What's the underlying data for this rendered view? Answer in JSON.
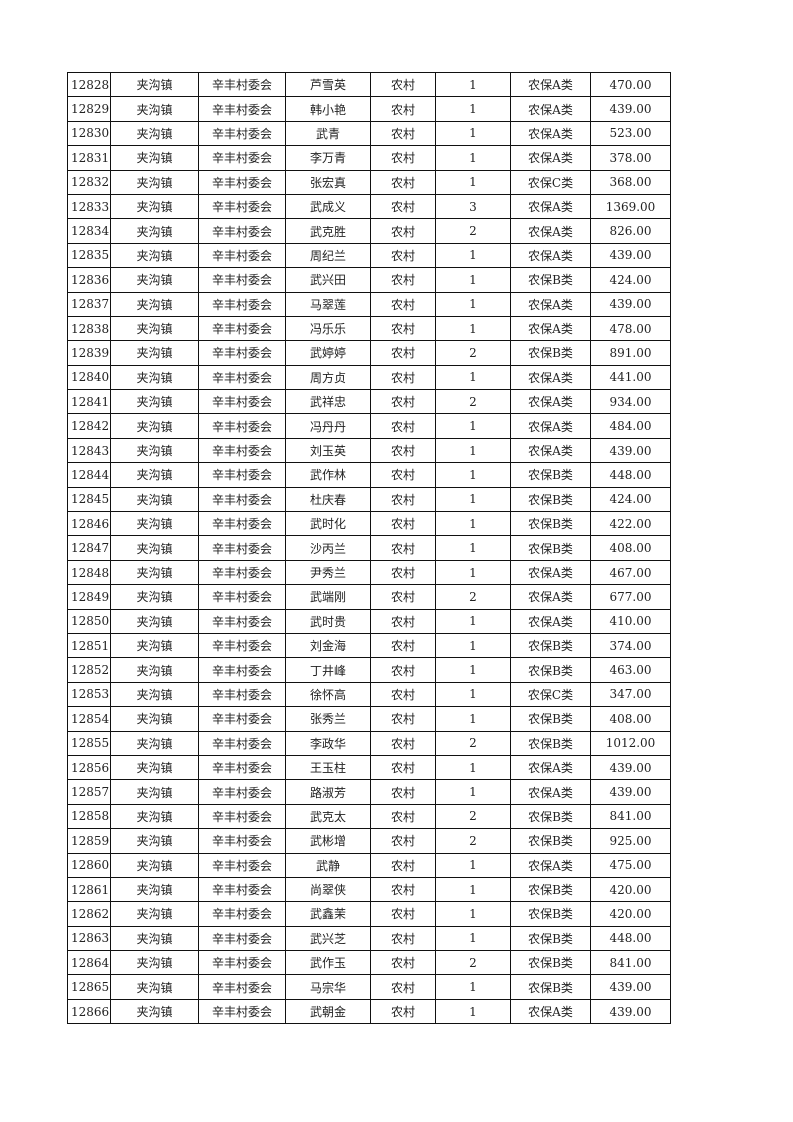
{
  "rows": [
    [
      "12828",
      "夹沟镇",
      "辛丰村委会",
      "芦雪英",
      "农村",
      "1",
      "农保A类",
      "470.00"
    ],
    [
      "12829",
      "夹沟镇",
      "辛丰村委会",
      "韩小艳",
      "农村",
      "1",
      "农保A类",
      "439.00"
    ],
    [
      "12830",
      "夹沟镇",
      "辛丰村委会",
      "武青",
      "农村",
      "1",
      "农保A类",
      "523.00"
    ],
    [
      "12831",
      "夹沟镇",
      "辛丰村委会",
      "李万青",
      "农村",
      "1",
      "农保A类",
      "378.00"
    ],
    [
      "12832",
      "夹沟镇",
      "辛丰村委会",
      "张宏真",
      "农村",
      "1",
      "农保C类",
      "368.00"
    ],
    [
      "12833",
      "夹沟镇",
      "辛丰村委会",
      "武成义",
      "农村",
      "3",
      "农保A类",
      "1369.00"
    ],
    [
      "12834",
      "夹沟镇",
      "辛丰村委会",
      "武克胜",
      "农村",
      "2",
      "农保A类",
      "826.00"
    ],
    [
      "12835",
      "夹沟镇",
      "辛丰村委会",
      "周纪兰",
      "农村",
      "1",
      "农保A类",
      "439.00"
    ],
    [
      "12836",
      "夹沟镇",
      "辛丰村委会",
      "武兴田",
      "农村",
      "1",
      "农保B类",
      "424.00"
    ],
    [
      "12837",
      "夹沟镇",
      "辛丰村委会",
      "马翠莲",
      "农村",
      "1",
      "农保A类",
      "439.00"
    ],
    [
      "12838",
      "夹沟镇",
      "辛丰村委会",
      "冯乐乐",
      "农村",
      "1",
      "农保A类",
      "478.00"
    ],
    [
      "12839",
      "夹沟镇",
      "辛丰村委会",
      "武婷婷",
      "农村",
      "2",
      "农保B类",
      "891.00"
    ],
    [
      "12840",
      "夹沟镇",
      "辛丰村委会",
      "周方贞",
      "农村",
      "1",
      "农保A类",
      "441.00"
    ],
    [
      "12841",
      "夹沟镇",
      "辛丰村委会",
      "武祥忠",
      "农村",
      "2",
      "农保A类",
      "934.00"
    ],
    [
      "12842",
      "夹沟镇",
      "辛丰村委会",
      "冯丹丹",
      "农村",
      "1",
      "农保A类",
      "484.00"
    ],
    [
      "12843",
      "夹沟镇",
      "辛丰村委会",
      "刘玉英",
      "农村",
      "1",
      "农保A类",
      "439.00"
    ],
    [
      "12844",
      "夹沟镇",
      "辛丰村委会",
      "武作林",
      "农村",
      "1",
      "农保B类",
      "448.00"
    ],
    [
      "12845",
      "夹沟镇",
      "辛丰村委会",
      "杜庆春",
      "农村",
      "1",
      "农保B类",
      "424.00"
    ],
    [
      "12846",
      "夹沟镇",
      "辛丰村委会",
      "武时化",
      "农村",
      "1",
      "农保B类",
      "422.00"
    ],
    [
      "12847",
      "夹沟镇",
      "辛丰村委会",
      "沙丙兰",
      "农村",
      "1",
      "农保B类",
      "408.00"
    ],
    [
      "12848",
      "夹沟镇",
      "辛丰村委会",
      "尹秀兰",
      "农村",
      "1",
      "农保A类",
      "467.00"
    ],
    [
      "12849",
      "夹沟镇",
      "辛丰村委会",
      "武端刚",
      "农村",
      "2",
      "农保A类",
      "677.00"
    ],
    [
      "12850",
      "夹沟镇",
      "辛丰村委会",
      "武时贵",
      "农村",
      "1",
      "农保A类",
      "410.00"
    ],
    [
      "12851",
      "夹沟镇",
      "辛丰村委会",
      "刘金海",
      "农村",
      "1",
      "农保B类",
      "374.00"
    ],
    [
      "12852",
      "夹沟镇",
      "辛丰村委会",
      "丁井峰",
      "农村",
      "1",
      "农保B类",
      "463.00"
    ],
    [
      "12853",
      "夹沟镇",
      "辛丰村委会",
      "徐怀高",
      "农村",
      "1",
      "农保C类",
      "347.00"
    ],
    [
      "12854",
      "夹沟镇",
      "辛丰村委会",
      "张秀兰",
      "农村",
      "1",
      "农保B类",
      "408.00"
    ],
    [
      "12855",
      "夹沟镇",
      "辛丰村委会",
      "李政华",
      "农村",
      "2",
      "农保B类",
      "1012.00"
    ],
    [
      "12856",
      "夹沟镇",
      "辛丰村委会",
      "王玉柱",
      "农村",
      "1",
      "农保A类",
      "439.00"
    ],
    [
      "12857",
      "夹沟镇",
      "辛丰村委会",
      "路淑芳",
      "农村",
      "1",
      "农保A类",
      "439.00"
    ],
    [
      "12858",
      "夹沟镇",
      "辛丰村委会",
      "武克太",
      "农村",
      "2",
      "农保B类",
      "841.00"
    ],
    [
      "12859",
      "夹沟镇",
      "辛丰村委会",
      "武彬增",
      "农村",
      "2",
      "农保B类",
      "925.00"
    ],
    [
      "12860",
      "夹沟镇",
      "辛丰村委会",
      "武静",
      "农村",
      "1",
      "农保A类",
      "475.00"
    ],
    [
      "12861",
      "夹沟镇",
      "辛丰村委会",
      "尚翠侠",
      "农村",
      "1",
      "农保B类",
      "420.00"
    ],
    [
      "12862",
      "夹沟镇",
      "辛丰村委会",
      "武鑫茉",
      "农村",
      "1",
      "农保B类",
      "420.00"
    ],
    [
      "12863",
      "夹沟镇",
      "辛丰村委会",
      "武兴芝",
      "农村",
      "1",
      "农保B类",
      "448.00"
    ],
    [
      "12864",
      "夹沟镇",
      "辛丰村委会",
      "武作玉",
      "农村",
      "2",
      "农保B类",
      "841.00"
    ],
    [
      "12865",
      "夹沟镇",
      "辛丰村委会",
      "马宗华",
      "农村",
      "1",
      "农保B类",
      "439.00"
    ],
    [
      "12866",
      "夹沟镇",
      "辛丰村委会",
      "武朝金",
      "农村",
      "1",
      "农保A类",
      "439.00"
    ]
  ]
}
